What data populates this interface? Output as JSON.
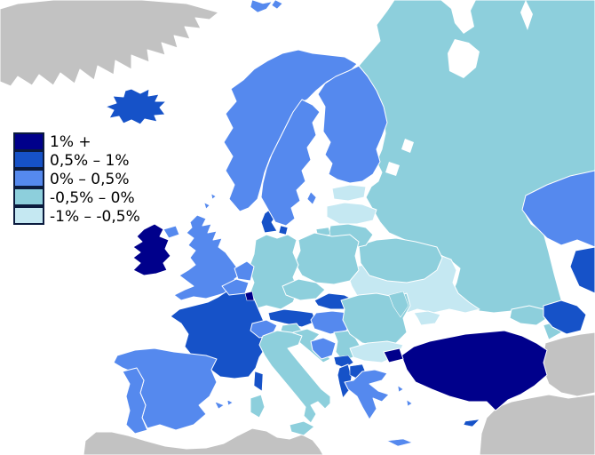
{
  "legend": {
    "items": [
      {
        "label": "1% +",
        "category": "cat1"
      },
      {
        "label": "0,5% – 1%",
        "category": "cat2"
      },
      {
        "label": "0% – 0,5%",
        "category": "cat3"
      },
      {
        "label": "-0,5% – 0%",
        "category": "cat4"
      },
      {
        "label": "-1% – -0,5%",
        "category": "cat5"
      }
    ]
  },
  "colors": {
    "cat1": "#00008B",
    "cat2": "#1652C8",
    "cat3": "#5589EE",
    "cat4": "#8DCFDC",
    "cat5": "#C5E8F2",
    "no_data": "#C2C2C2",
    "sea": "#FFFFFF",
    "border": "#FFFFFF",
    "legend_swatch_border": "#0B1B3E",
    "legend_text": "#000000"
  },
  "countries": [
    {
      "name": "greenland",
      "category": "no_data"
    },
    {
      "name": "north-africa",
      "category": "no_data"
    },
    {
      "name": "middle-east",
      "category": "no_data"
    },
    {
      "name": "iran",
      "category": "no_data"
    },
    {
      "name": "russia",
      "category": "cat4"
    },
    {
      "name": "white-sea-north",
      "category": "sea"
    },
    {
      "name": "white-sea-south",
      "category": "sea"
    },
    {
      "name": "lake-ladoga",
      "category": "sea"
    },
    {
      "name": "lake-onega",
      "category": "sea"
    },
    {
      "name": "novaya-zemlya-strait",
      "category": "sea"
    },
    {
      "name": "kazakhstan",
      "category": "cat3"
    },
    {
      "name": "turkmenistan",
      "category": "cat2"
    },
    {
      "name": "ukraine",
      "category": "cat5"
    },
    {
      "name": "crimea",
      "category": "cat5"
    },
    {
      "name": "belarus",
      "category": "cat4"
    },
    {
      "name": "lithuania",
      "category": "cat4"
    },
    {
      "name": "latvia",
      "category": "cat5"
    },
    {
      "name": "estonia",
      "category": "cat5"
    },
    {
      "name": "kaliningrad",
      "category": "cat4"
    },
    {
      "name": "poland",
      "category": "cat4"
    },
    {
      "name": "germany",
      "category": "cat4"
    },
    {
      "name": "denmark",
      "category": "cat2"
    },
    {
      "name": "denmark-islands",
      "category": "cat2"
    },
    {
      "name": "norway",
      "category": "cat3"
    },
    {
      "name": "svalbard",
      "category": "cat3"
    },
    {
      "name": "sweden",
      "category": "cat3"
    },
    {
      "name": "gotland",
      "category": "cat3"
    },
    {
      "name": "finland",
      "category": "cat3"
    },
    {
      "name": "iceland",
      "category": "cat2"
    },
    {
      "name": "united-kingdom",
      "category": "cat3"
    },
    {
      "name": "northern-isles",
      "category": "cat3"
    },
    {
      "name": "northern-ireland",
      "category": "cat3"
    },
    {
      "name": "ireland",
      "category": "cat1"
    },
    {
      "name": "france",
      "category": "cat2"
    },
    {
      "name": "netherlands",
      "category": "cat3"
    },
    {
      "name": "belgium",
      "category": "cat3"
    },
    {
      "name": "luxembourg",
      "category": "cat1"
    },
    {
      "name": "corsica",
      "category": "cat2"
    },
    {
      "name": "switzerland",
      "category": "cat3"
    },
    {
      "name": "austria",
      "category": "cat2"
    },
    {
      "name": "czech-republic",
      "category": "cat4"
    },
    {
      "name": "slovakia",
      "category": "cat2"
    },
    {
      "name": "hungary",
      "category": "cat3"
    },
    {
      "name": "slovenia",
      "category": "cat4"
    },
    {
      "name": "croatia",
      "category": "cat4"
    },
    {
      "name": "bosnia",
      "category": "cat3"
    },
    {
      "name": "serbia",
      "category": "cat4"
    },
    {
      "name": "montenegro-kosovo",
      "category": "cat2"
    },
    {
      "name": "albania",
      "category": "cat2"
    },
    {
      "name": "macedonia",
      "category": "cat2"
    },
    {
      "name": "romania",
      "category": "cat4"
    },
    {
      "name": "moldova",
      "category": "cat4"
    },
    {
      "name": "bulgaria",
      "category": "cat5"
    },
    {
      "name": "greece",
      "category": "cat3"
    },
    {
      "name": "crete",
      "category": "cat3"
    },
    {
      "name": "aegean-islands",
      "category": "cat3"
    },
    {
      "name": "spain",
      "category": "cat3"
    },
    {
      "name": "portugal",
      "category": "cat3"
    },
    {
      "name": "balearic-islands",
      "category": "cat3"
    },
    {
      "name": "italy",
      "category": "cat4"
    },
    {
      "name": "sicily",
      "category": "cat4"
    },
    {
      "name": "sardinia",
      "category": "cat4"
    },
    {
      "name": "turkey",
      "category": "cat1"
    },
    {
      "name": "turkey-thrace",
      "category": "cat1"
    },
    {
      "name": "cyprus",
      "category": "cat2"
    },
    {
      "name": "georgia",
      "category": "cat4"
    },
    {
      "name": "armenia",
      "category": "cat4"
    },
    {
      "name": "azerbaijan",
      "category": "cat2"
    }
  ]
}
